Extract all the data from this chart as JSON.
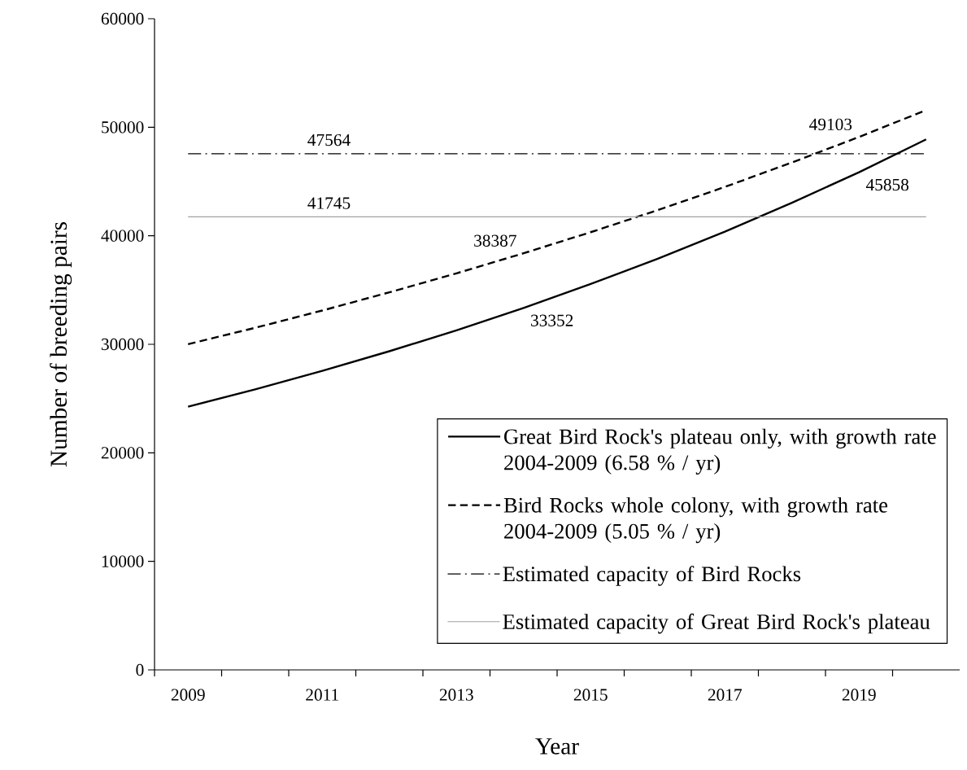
{
  "chart_data": {
    "type": "line",
    "xlabel": "Year",
    "ylabel": "Number of breeding pairs",
    "categories": [
      "2009",
      null,
      "2011",
      null,
      "2013",
      null,
      "2015",
      null,
      "2017",
      null,
      "2019",
      null
    ],
    "series": [
      {
        "name": "Great Bird Rock's plateau only, with growth rate 2004-2009 (6.58 % / yr)",
        "color": "#000000",
        "line_style": "solid",
        "values": [
          24250,
          25850,
          27550,
          29360,
          31290,
          33352,
          35550,
          37890,
          40380,
          43040,
          45858,
          48880
        ],
        "value_labels": [
          null,
          null,
          null,
          null,
          null,
          "33352",
          null,
          null,
          null,
          null,
          "45858",
          null
        ]
      },
      {
        "name": "Bird Rocks whole colony, with growth rate 2004-2009 (5.05 % / yr)",
        "color": "#000000",
        "line_style": "dashed",
        "values": [
          30010,
          31520,
          33110,
          34790,
          36540,
          38387,
          40330,
          42360,
          44500,
          46750,
          49103,
          51580
        ],
        "value_labels": [
          null,
          null,
          null,
          null,
          null,
          "38387",
          null,
          null,
          null,
          null,
          "49103",
          null
        ]
      }
    ],
    "ref_lines": [
      {
        "axis": "y",
        "value": 47564,
        "label": "Estimated capacity of Bird Rocks",
        "color": "#000000",
        "line_style": "dashdot"
      },
      {
        "axis": "y",
        "value": 41745,
        "label": "Estimated capacity of Great Bird Rock's plateau",
        "color": "#a0a0a0",
        "line_style": "solid"
      }
    ],
    "annotations": [
      {
        "text": "47564",
        "y": 47564
      },
      {
        "text": "41745",
        "y": 41745
      }
    ],
    "ylim": [
      0,
      60000
    ],
    "yticks": [
      0,
      10000,
      20000,
      30000,
      40000,
      50000,
      60000
    ],
    "legend": "bottom right"
  }
}
